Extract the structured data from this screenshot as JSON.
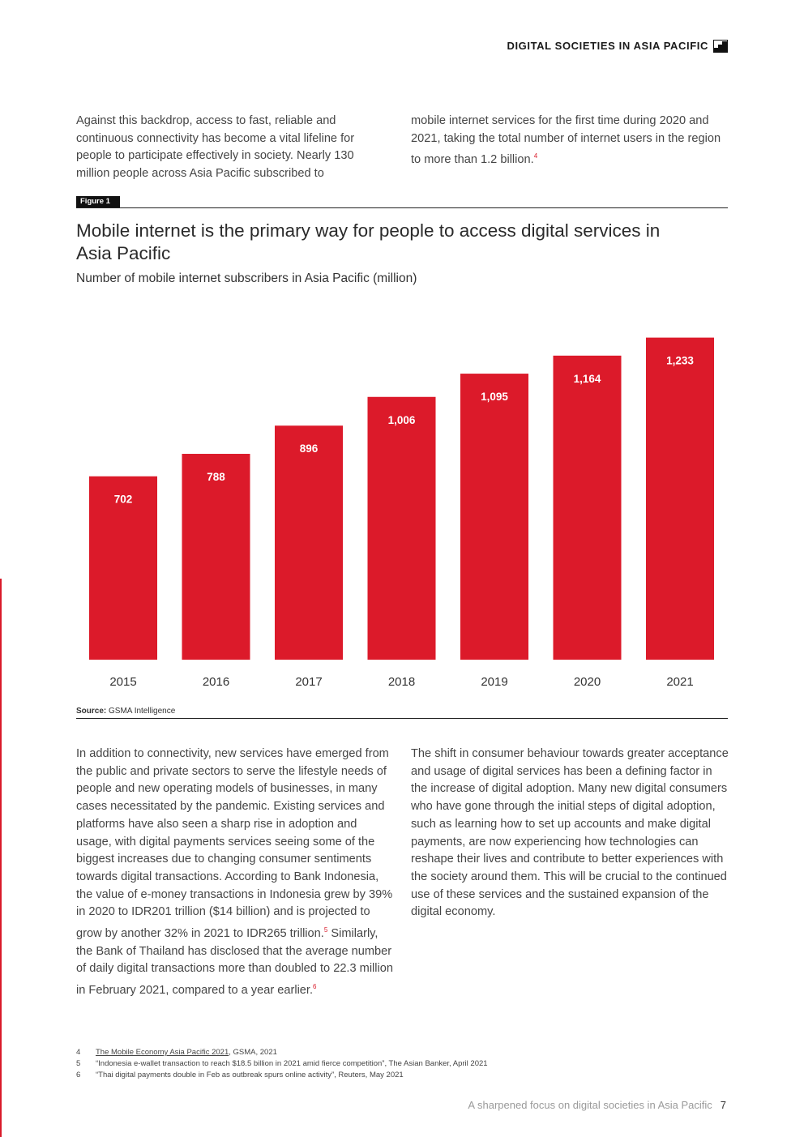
{
  "header": {
    "title": "DIGITAL SOCIETIES IN ASIA PACIFIC",
    "icon": "stairs-icon"
  },
  "intro": {
    "left": "Against this backdrop, access to fast, reliable and continuous connectivity has become a vital lifeline for people to participate effectively in society. Nearly 130 million people across Asia Pacific subscribed to",
    "right": "mobile internet services for the first time during 2020 and 2021, taking the total number of internet users in the region to more than 1.2 billion.",
    "right_ref": "4"
  },
  "figure": {
    "tag": "Figure 1",
    "title": "Mobile internet is the primary way for people to access digital services in Asia Pacific",
    "subtitle": "Number of mobile internet subscribers in Asia Pacific (million)",
    "source_label": "Source:",
    "source_text": "GSMA Intelligence"
  },
  "chart_data": {
    "type": "bar",
    "title": "Mobile internet is the primary way for people to access digital services in Asia Pacific",
    "subtitle": "Number of mobile internet subscribers in Asia Pacific (million)",
    "categories": [
      "2015",
      "2016",
      "2017",
      "2018",
      "2019",
      "2020",
      "2021"
    ],
    "values": [
      702,
      788,
      896,
      1006,
      1095,
      1164,
      1233
    ],
    "value_labels": [
      "702",
      "788",
      "896",
      "1,006",
      "1,095",
      "1,164",
      "1,233"
    ],
    "ylim": [
      0,
      1300
    ],
    "bar_color": "#dc1a2a",
    "grid": false,
    "legend": "none"
  },
  "body": {
    "left_1": "In addition to connectivity, new services have emerged from the public and private sectors to serve the lifestyle needs of people and new operating models of businesses, in many cases necessitated by the pandemic. Existing services and platforms have also seen a sharp rise in adoption and usage, with digital payments services seeing some of the biggest increases due to changing consumer sentiments towards digital transactions. According to Bank Indonesia, the value of e-money transactions in Indonesia grew by 39% in 2020 to IDR201 trillion ($14 billion) and is projected to grow by another 32% in 2021 to IDR265 trillion.",
    "left_ref1": "5",
    "left_2": " Similarly, the Bank of Thailand has disclosed that the average number of daily digital transactions more than doubled to 22.3 million in February 2021, compared to a year earlier.",
    "left_ref2": "6",
    "right": "The shift in consumer behaviour towards greater acceptance and usage of digital services has been a defining factor in the increase of digital adoption. Many new digital consumers who have gone through the initial steps of digital adoption, such as learning how to set up accounts and make digital payments, are now experiencing how technologies can reshape their lives and contribute to better experiences with the society around them. This will be crucial to the continued use of these services and the sustained expansion of the digital economy."
  },
  "footnotes": [
    {
      "num": "4",
      "link": "The Mobile Economy Asia Pacific 2021",
      "text": ", GSMA, 2021"
    },
    {
      "num": "5",
      "link": "",
      "text": "“Indonesia e-wallet transaction to reach $18.5 billion in 2021 amid fierce competition”, The Asian Banker, April 2021"
    },
    {
      "num": "6",
      "link": "",
      "text": "“Thai digital payments double in Feb as outbreak spurs online activity”, Reuters, May 2021"
    }
  ],
  "footer": {
    "text": "A sharpened focus on digital societies in Asia Pacific",
    "page": "7"
  }
}
